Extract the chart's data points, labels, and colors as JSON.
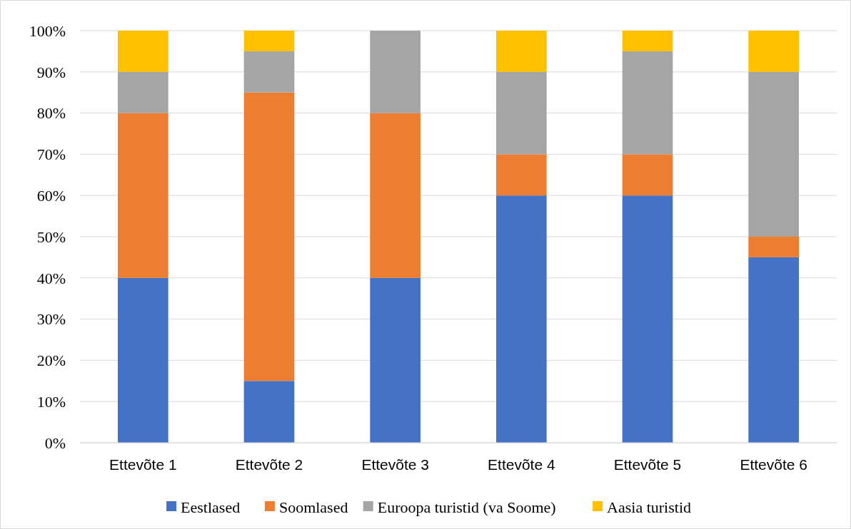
{
  "chart_data": {
    "type": "bar",
    "stacked": true,
    "categories": [
      "Ettevõte 1",
      "Ettevõte 2",
      "Ettevõte 3",
      "Ettevõte 4",
      "Ettevõte 5",
      "Ettevõte 6"
    ],
    "series": [
      {
        "name": "Eestlased",
        "color": "#4472c4",
        "values": [
          40,
          15,
          40,
          60,
          60,
          45
        ]
      },
      {
        "name": "Soomlased",
        "color": "#ed7d31",
        "values": [
          40,
          70,
          40,
          10,
          10,
          5
        ]
      },
      {
        "name": "Euroopa turistid (va Soome)",
        "color": "#a5a5a5",
        "values": [
          10,
          10,
          20,
          20,
          25,
          40
        ]
      },
      {
        "name": "Aasia turistid",
        "color": "#ffc000",
        "values": [
          10,
          5,
          0,
          10,
          5,
          10
        ]
      }
    ],
    "ylim": [
      0,
      100
    ],
    "yticks": [
      {
        "value": 0,
        "label": "0%"
      },
      {
        "value": 10,
        "label": "10%"
      },
      {
        "value": 20,
        "label": "20%"
      },
      {
        "value": 30,
        "label": "30%"
      },
      {
        "value": 40,
        "label": "40%"
      },
      {
        "value": 50,
        "label": "50%"
      },
      {
        "value": 60,
        "label": "60%"
      },
      {
        "value": 70,
        "label": "70%"
      },
      {
        "value": 80,
        "label": "80%"
      },
      {
        "value": 90,
        "label": "90%"
      },
      {
        "value": 100,
        "label": "100%"
      }
    ],
    "grid": "y",
    "legend": "bottom"
  }
}
